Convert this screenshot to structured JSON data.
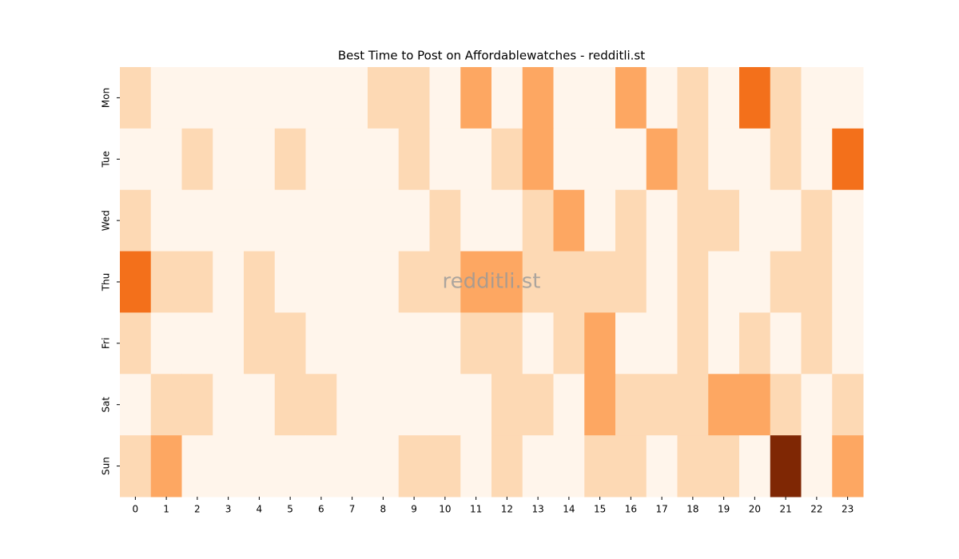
{
  "chart_data": {
    "type": "heatmap",
    "title": "Best Time to Post on Affordablewatches - redditli.st",
    "watermark": "redditli.st",
    "colormap": "Oranges",
    "x": [
      0,
      1,
      2,
      3,
      4,
      5,
      6,
      7,
      8,
      9,
      10,
      11,
      12,
      13,
      14,
      15,
      16,
      17,
      18,
      19,
      20,
      21,
      22,
      23
    ],
    "y": [
      "Mon",
      "Tue",
      "Wed",
      "Thu",
      "Fri",
      "Sat",
      "Sun"
    ],
    "values": [
      [
        1,
        0,
        0,
        0,
        0,
        0,
        0,
        0,
        1,
        1,
        0,
        2,
        0,
        2,
        0,
        0,
        2,
        0,
        1,
        0,
        3,
        1,
        0,
        0
      ],
      [
        0,
        0,
        1,
        0,
        0,
        1,
        0,
        0,
        0,
        1,
        0,
        0,
        1,
        2,
        0,
        0,
        0,
        2,
        1,
        0,
        0,
        1,
        0,
        3
      ],
      [
        1,
        0,
        0,
        0,
        0,
        0,
        0,
        0,
        0,
        0,
        1,
        0,
        0,
        1,
        2,
        0,
        1,
        0,
        1,
        1,
        0,
        0,
        1,
        0
      ],
      [
        3,
        1,
        1,
        0,
        1,
        0,
        0,
        0,
        0,
        1,
        1,
        2,
        2,
        1,
        1,
        1,
        1,
        0,
        1,
        0,
        0,
        1,
        1,
        0
      ],
      [
        1,
        0,
        0,
        0,
        1,
        1,
        0,
        0,
        0,
        0,
        0,
        1,
        1,
        0,
        1,
        2,
        0,
        0,
        1,
        0,
        1,
        0,
        1,
        0
      ],
      [
        0,
        1,
        1,
        0,
        0,
        1,
        1,
        0,
        0,
        0,
        0,
        0,
        1,
        1,
        0,
        2,
        1,
        1,
        1,
        2,
        2,
        1,
        0,
        1
      ],
      [
        1,
        2,
        0,
        0,
        0,
        0,
        0,
        0,
        0,
        1,
        1,
        0,
        1,
        0,
        0,
        1,
        1,
        0,
        1,
        1,
        0,
        5,
        0,
        2
      ]
    ]
  }
}
